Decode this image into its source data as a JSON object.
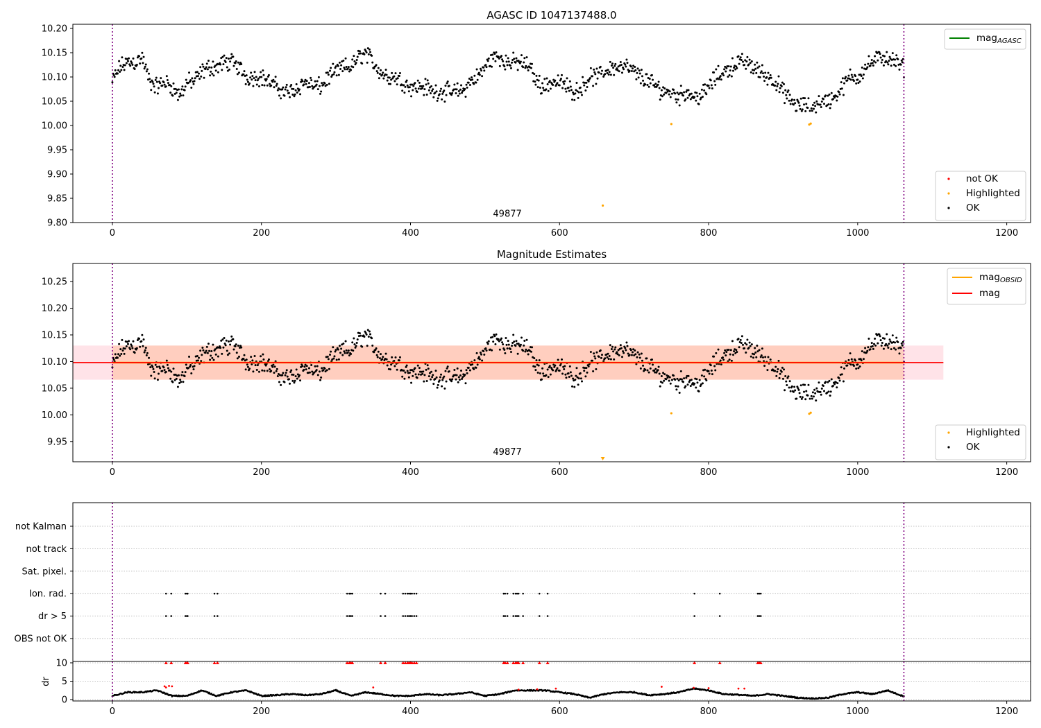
{
  "chart_data": [
    {
      "type": "scatter",
      "title": "AGASC ID 1047137488.0",
      "xlim": [
        -53,
        1232
      ],
      "ylim": [
        9.8,
        10.2086
      ],
      "xticks": [
        0,
        200,
        400,
        600,
        800,
        1000,
        1200
      ],
      "yticks": [
        9.8,
        9.85,
        9.9,
        9.95,
        10.0,
        10.05,
        10.1,
        10.15,
        10.2
      ],
      "annotation": {
        "text": "49877",
        "x": 530,
        "y": 9.812
      },
      "legend_upper": {
        "main": "mag",
        "sub": "AGASC",
        "color": "#008000",
        "placement": "top-right"
      },
      "legend_lower": [
        {
          "label": "not OK",
          "color": "#ff0000"
        },
        {
          "label": "Highlighted",
          "color": "#ffa500"
        },
        {
          "label": "OK",
          "color": "#000000"
        }
      ],
      "highlighted": [
        [
          750,
          10.003
        ],
        [
          935,
          10.002
        ],
        [
          937,
          10.004
        ],
        [
          658,
          9.835
        ]
      ]
    },
    {
      "type": "scatter",
      "title": "Magnitude Estimates",
      "xlim": [
        -53,
        1232
      ],
      "ylim": [
        9.912,
        10.284
      ],
      "xticks": [
        0,
        200,
        400,
        600,
        800,
        1000,
        1200
      ],
      "yticks": [
        9.95,
        10.0,
        10.05,
        10.1,
        10.15,
        10.2,
        10.25
      ],
      "annotation": {
        "text": "49877",
        "x": 530,
        "y": 9.925
      },
      "mag": 10.098,
      "mag_band": [
        10.066,
        10.13
      ],
      "mag_band_x": [
        -53,
        1115
      ],
      "mag_obsid": 10.098,
      "mag_obsid_x": [
        0,
        1062
      ],
      "legend_upper": [
        {
          "main": "mag",
          "sub": "OBSID",
          "color": "#ffa500"
        },
        {
          "main": "mag",
          "sub": "",
          "color": "#ff0000"
        }
      ],
      "legend_lower": [
        {
          "label": "Highlighted",
          "color": "#ffa500"
        },
        {
          "label": "OK",
          "color": "#000000"
        }
      ],
      "highlighted": [
        [
          750,
          10.003
        ],
        [
          935,
          10.002
        ],
        [
          937,
          10.004
        ]
      ],
      "offscale_marker": 658
    },
    {
      "type": "scatter",
      "categories": [
        "OBS not OK",
        "dr > 5",
        "Ion. rad.",
        "Sat. pixel.",
        "not track",
        "not Kalman"
      ],
      "ylim": [
        -1.02,
        6.05
      ],
      "flag_indices": [
        72,
        79,
        98,
        100,
        101,
        137,
        141,
        315,
        318,
        320,
        322,
        360,
        366,
        390,
        393,
        396,
        398,
        400,
        402,
        405,
        408,
        525,
        527,
        530,
        538,
        541,
        543,
        545,
        551,
        573,
        584,
        781,
        815,
        866,
        868,
        870
      ],
      "flag_rows": [
        "dr > 5",
        "Ion. rad."
      ]
    },
    {
      "type": "scatter",
      "ylabel": "dr",
      "ylim": [
        -0.38,
        10.38
      ],
      "yticks": [
        0,
        5,
        10
      ],
      "xticks": [
        0,
        200,
        400,
        600,
        800,
        1000,
        1200
      ],
      "dr_step": 20,
      "dr_curve": [
        1,
        2,
        2,
        2.5,
        1,
        1,
        2.5,
        1,
        2,
        2.5,
        1,
        1.2,
        1.5,
        1.2,
        1.5,
        2.5,
        1,
        2,
        1.5,
        1,
        1,
        1.5,
        1.2,
        1.5,
        2,
        1,
        1.5,
        2.5,
        2.5,
        2.5,
        2,
        1.5,
        0.5,
        1.5,
        2,
        2,
        1.2,
        1.5,
        2,
        3,
        2.5,
        1.5,
        1.3,
        1,
        1.5,
        1,
        0.5,
        0.3,
        0.5,
        1.5,
        2,
        1.5,
        2.5,
        1
      ],
      "dr_red": [
        [
          70,
          3.6
        ],
        [
          72,
          3.3
        ],
        [
          76,
          3.7
        ],
        [
          80,
          3.6
        ],
        [
          350,
          3.3
        ],
        [
          545,
          2.7
        ],
        [
          570,
          2.8
        ],
        [
          595,
          3
        ],
        [
          737,
          3.5
        ],
        [
          780,
          3.2
        ],
        [
          800,
          3.1
        ],
        [
          840,
          3
        ],
        [
          848,
          3
        ]
      ]
    }
  ],
  "series": {
    "n_points": 1063,
    "step": 10,
    "mean_mag": [
      10.09,
      10.12,
      10.13,
      10.13,
      10.14,
      10.09,
      10.08,
      10.09,
      10.08,
      10.06,
      10.09,
      10.09,
      10.11,
      10.12,
      10.12,
      10.13,
      10.13,
      10.12,
      10.1,
      10.1,
      10.1,
      10.09,
      10.08,
      10.07,
      10.07,
      10.08,
      10.09,
      10.08,
      10.08,
      10.1,
      10.11,
      10.12,
      10.12,
      10.14,
      10.15,
      10.13,
      10.11,
      10.1,
      10.1,
      10.09,
      10.08,
      10.08,
      10.08,
      10.07,
      10.07,
      10.07,
      10.07,
      10.07,
      10.09,
      10.1,
      10.12,
      10.14,
      10.14,
      10.13,
      10.13,
      10.13,
      10.12,
      10.09,
      10.08,
      10.09,
      10.09,
      10.08,
      10.07,
      10.08,
      10.1,
      10.1,
      10.11,
      10.12,
      10.12,
      10.12,
      10.11,
      10.1,
      10.09,
      10.08,
      10.07,
      10.07,
      10.06,
      10.07,
      10.06,
      10.06,
      10.08,
      10.1,
      10.11,
      10.12,
      10.13,
      10.13,
      10.12,
      10.11,
      10.1,
      10.09,
      10.07,
      10.05,
      10.04,
      10.04,
      10.04,
      10.05,
      10.05,
      10.06,
      10.08,
      10.1,
      10.1,
      10.12,
      10.13,
      10.14,
      10.14,
      10.13,
      10.12
    ],
    "scatter_amp": 0.022
  },
  "vlines": {
    "x": [
      0,
      1062
    ],
    "color": "#800080"
  }
}
